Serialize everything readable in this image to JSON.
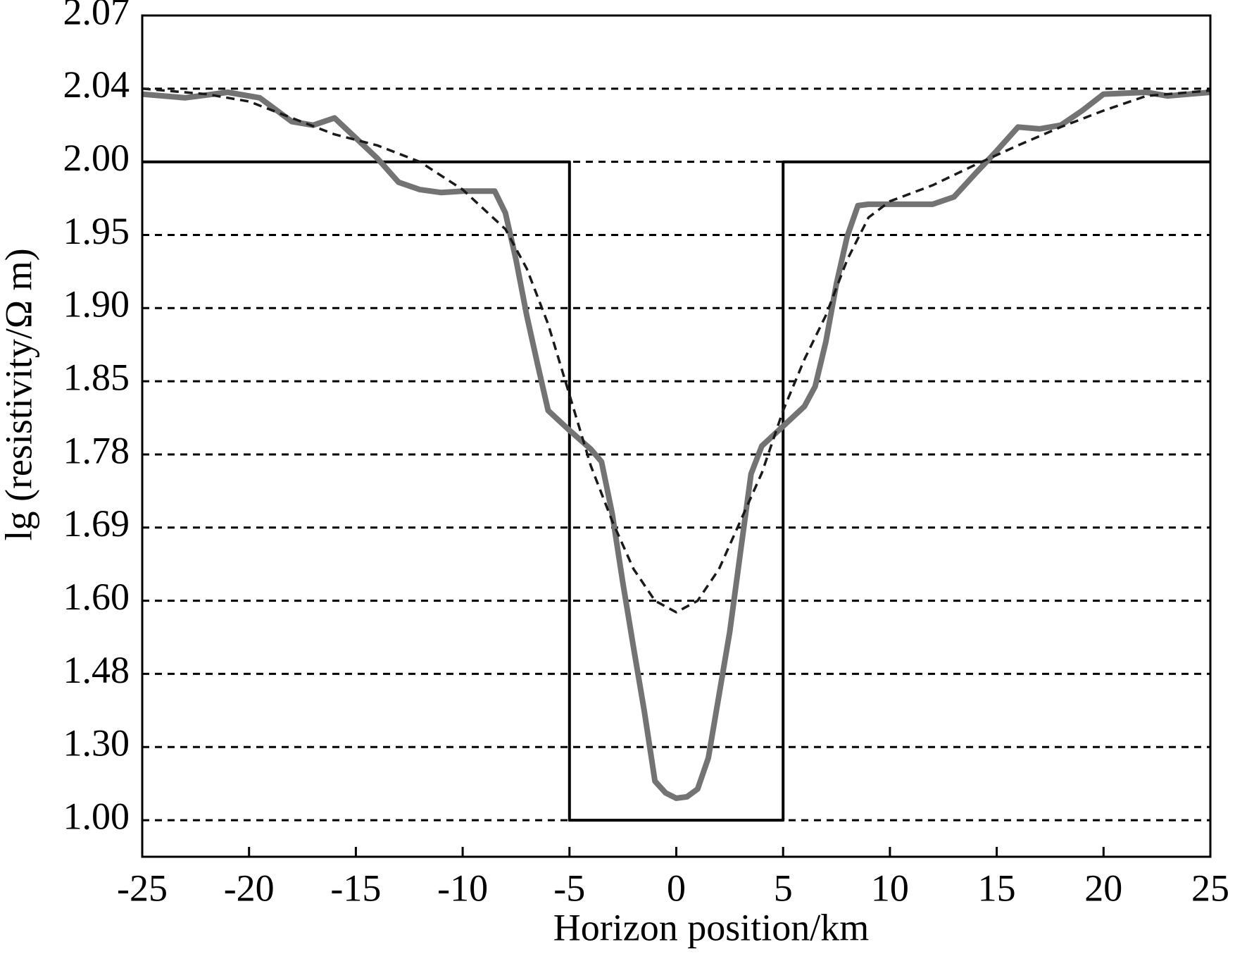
{
  "chart_data": {
    "type": "line",
    "xlabel": "Horizon position/km",
    "ylabel": "lg (resistivity/Ω m)",
    "xlim": [
      -25,
      25
    ],
    "xticks": [
      -25,
      -20,
      -15,
      -10,
      -5,
      0,
      5,
      10,
      15,
      20,
      25
    ],
    "ylim": [
      0.85,
      2.07
    ],
    "yticks": [
      1.0,
      1.3,
      1.48,
      1.6,
      1.69,
      1.78,
      1.85,
      1.9,
      1.95,
      2.0,
      2.04,
      2.07
    ],
    "yscale": "ticks-evenly-spaced",
    "grid": true,
    "series": [
      {
        "color": "#000000",
        "style": "solid",
        "width": 4,
        "x": [
          -25,
          -5,
          -5,
          5,
          5,
          25
        ],
        "values": [
          2.0,
          2.0,
          1.0,
          1.0,
          2.0,
          2.0
        ]
      },
      {
        "color": "#737373",
        "style": "solid",
        "width": 8,
        "x": [
          -25,
          -23,
          -21,
          -19.5,
          -18,
          -17,
          -16,
          -15,
          -14,
          -13,
          -12,
          -11,
          -10,
          -8.5,
          -8,
          -7.5,
          -7,
          -6.5,
          -6,
          -5,
          -4,
          -3.5,
          -3,
          -2.5,
          -2,
          -1.5,
          -1,
          -0.5,
          0,
          0.5,
          1,
          1.5,
          2,
          2.5,
          3,
          3.5,
          4,
          5,
          6,
          6.5,
          7,
          7.5,
          8,
          8.5,
          9,
          12,
          13,
          14,
          15,
          16,
          17,
          18,
          19,
          20,
          22,
          23,
          25
        ],
        "values": [
          2.037,
          2.035,
          2.038,
          2.035,
          2.022,
          2.02,
          2.024,
          2.013,
          2.002,
          1.986,
          1.981,
          1.979,
          1.98,
          1.98,
          1.965,
          1.933,
          1.895,
          1.862,
          1.822,
          1.803,
          1.785,
          1.771,
          1.707,
          1.622,
          1.523,
          1.389,
          1.16,
          1.112,
          1.09,
          1.096,
          1.128,
          1.255,
          1.428,
          1.548,
          1.659,
          1.756,
          1.788,
          1.807,
          1.826,
          1.845,
          1.877,
          1.917,
          1.949,
          1.97,
          1.971,
          1.971,
          1.976,
          1.992,
          2.006,
          2.019,
          2.018,
          2.02,
          2.028,
          2.037,
          2.038,
          2.036,
          2.038
        ]
      },
      {
        "color": "#1a1a1a",
        "style": "dashed",
        "width": 3.5,
        "x": [
          -25,
          -22,
          -20,
          -18,
          -16,
          -14,
          -12,
          -10,
          -8,
          -7,
          -6,
          -5,
          -4,
          -3,
          -2,
          -1,
          0,
          1,
          2,
          3,
          4,
          5,
          6,
          7,
          8,
          9,
          10,
          12,
          14,
          16,
          18,
          20,
          22,
          25
        ],
        "values": [
          2.04,
          2.037,
          2.033,
          2.024,
          2.015,
          2.009,
          2.0,
          1.981,
          1.954,
          1.927,
          1.889,
          1.837,
          1.766,
          1.698,
          1.639,
          1.6,
          1.581,
          1.6,
          1.639,
          1.698,
          1.757,
          1.822,
          1.865,
          1.895,
          1.933,
          1.962,
          1.973,
          1.984,
          1.998,
          2.009,
          2.019,
          2.028,
          2.036,
          2.039
        ]
      }
    ]
  }
}
